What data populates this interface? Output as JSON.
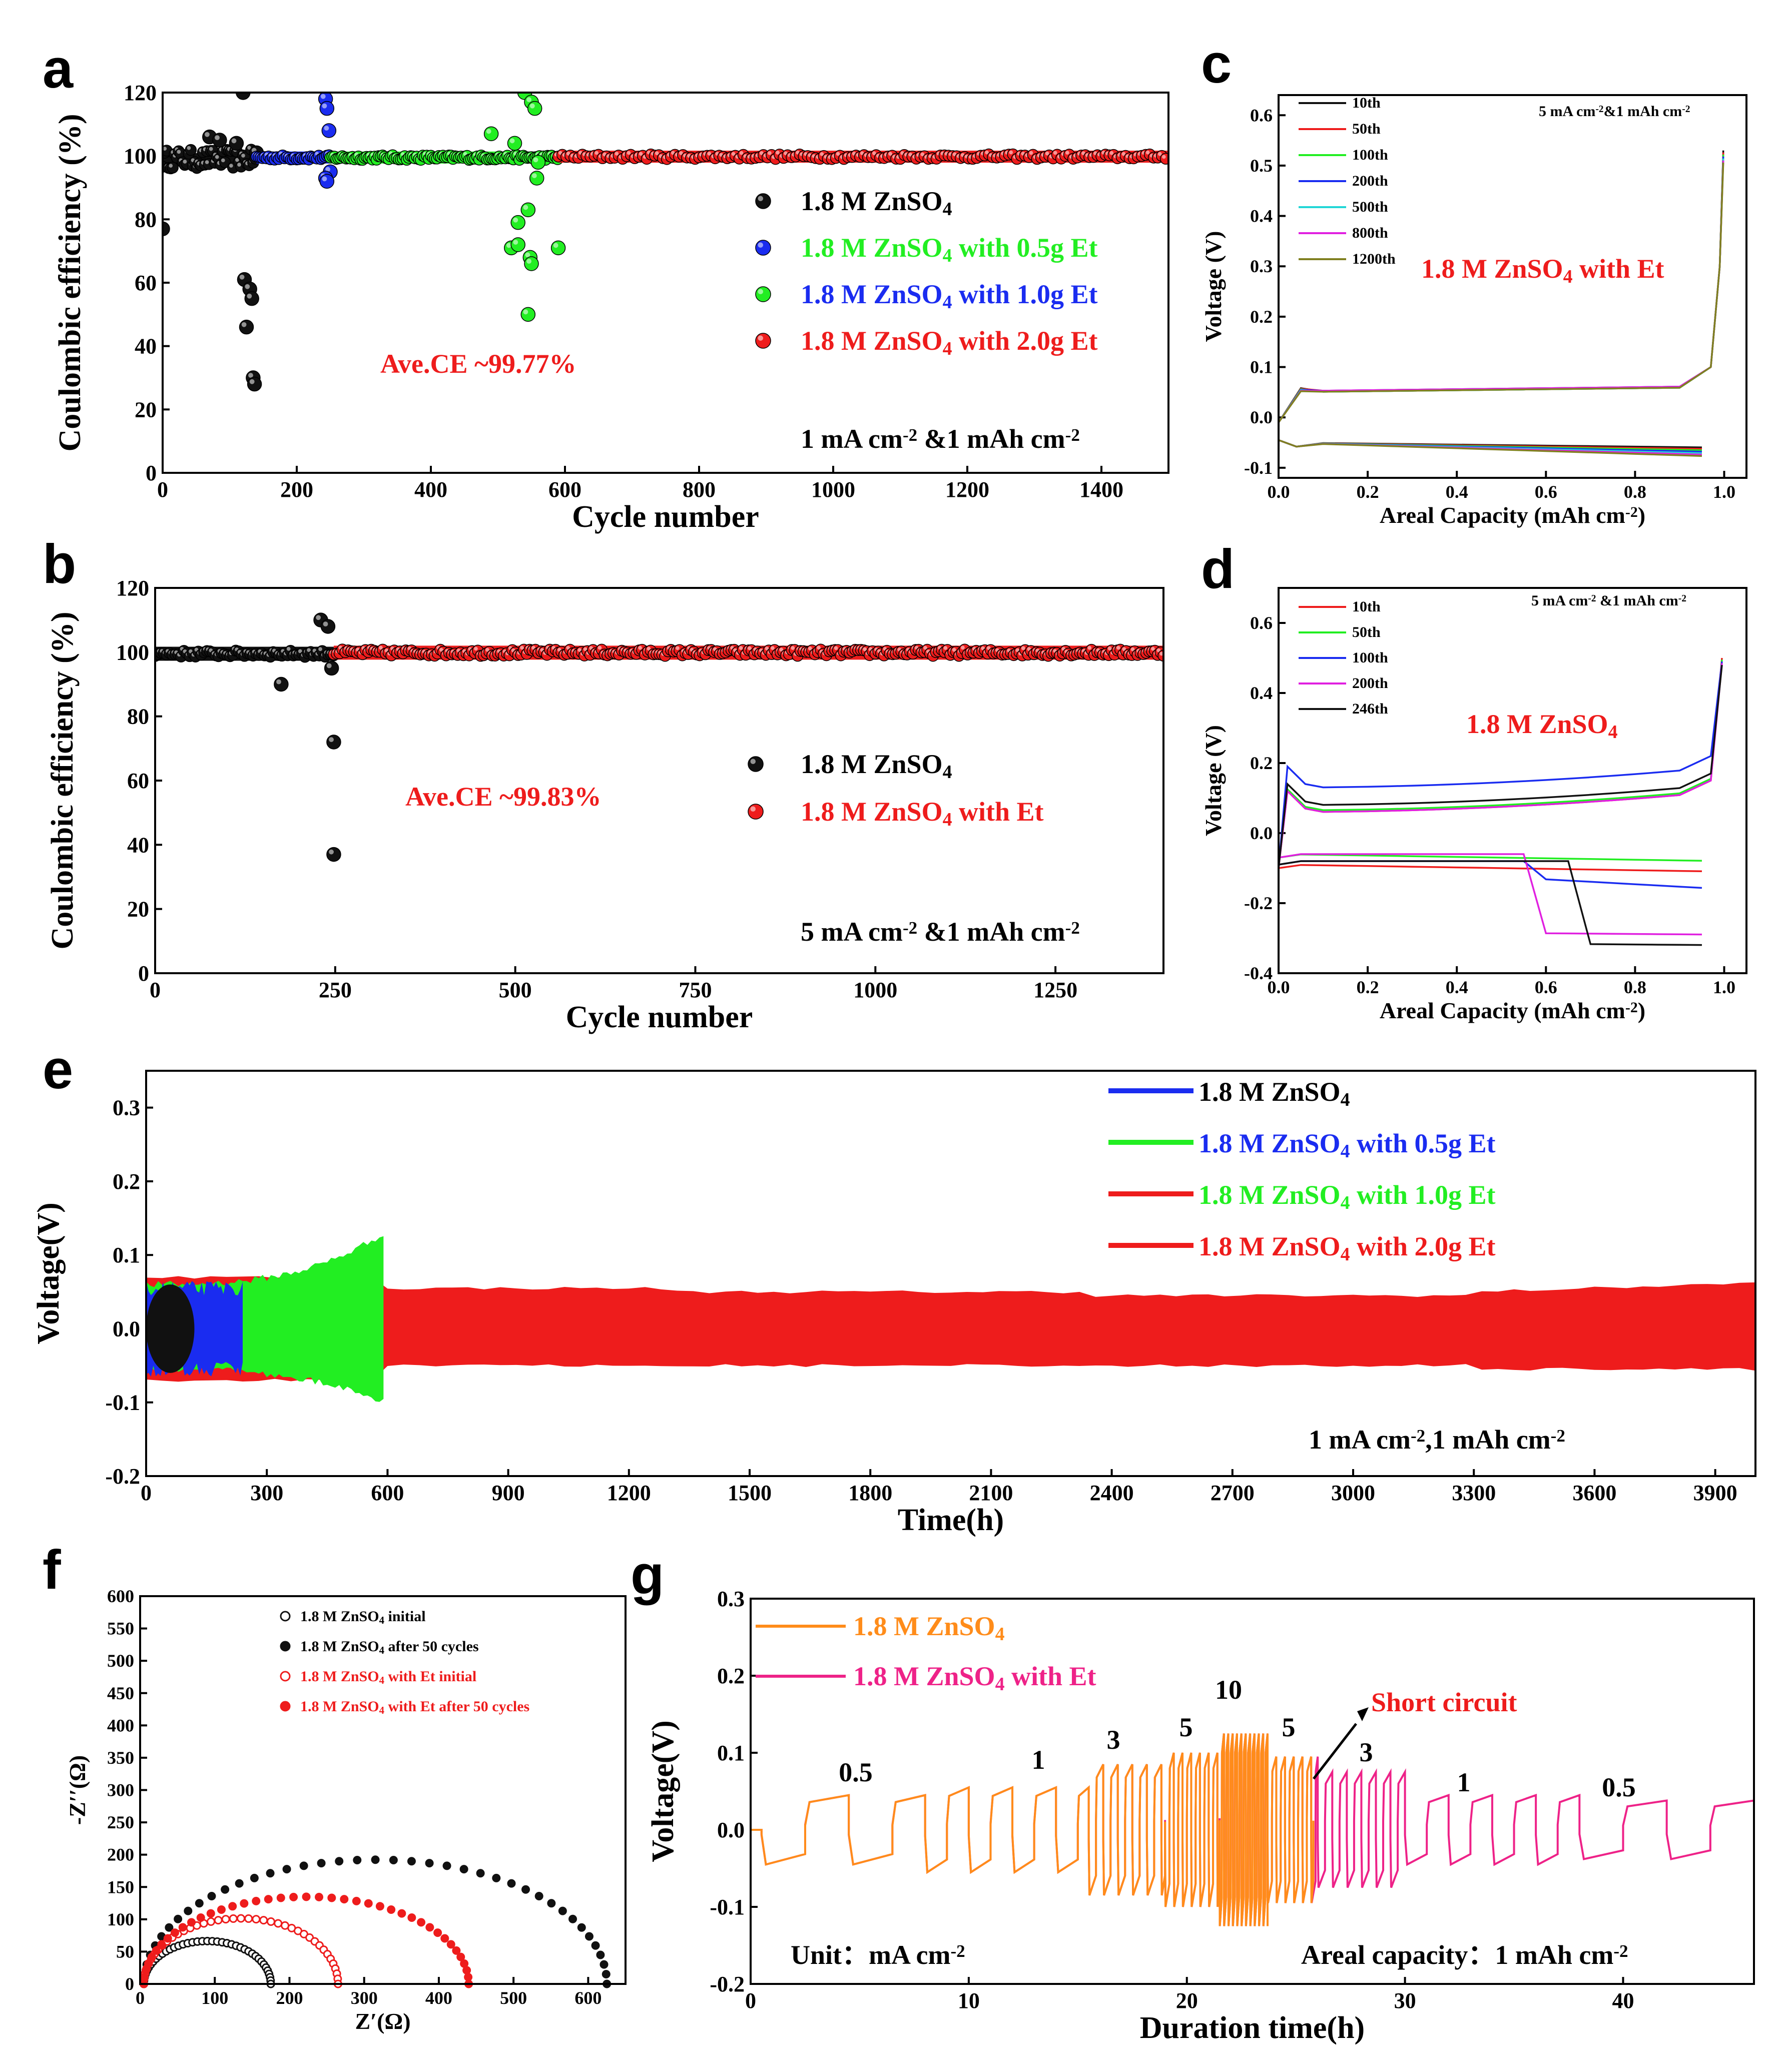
{
  "colors": {
    "black": "#111111",
    "red": "#ee1c1c",
    "green": "#22ee22",
    "blue": "#1a2cf0",
    "cyan": "#22d6d6",
    "magenta": "#e020e0",
    "olive": "#808020",
    "orange": "#ff8c1a",
    "pink": "#ee2288"
  },
  "chart_data": [
    {
      "panel": "a",
      "type": "scatter",
      "xlabel": "Cycle number",
      "ylabel": "Coulombic efficiency (%)",
      "xlim": [
        0,
        1500
      ],
      "ylim": [
        0,
        120
      ],
      "xticks": [
        "0",
        "200",
        "400",
        "600",
        "800",
        "1000",
        "1200",
        "1400"
      ],
      "yticks": [
        "0",
        "20",
        "40",
        "60",
        "80",
        "100",
        "120"
      ],
      "annotation": "Ave.CE ~99.77%",
      "condition": "1 mA cm⁻² &1 mAh cm⁻²",
      "series": [
        {
          "name": "1.8 M ZnSO₄",
          "color": "black",
          "x_range": [
            0,
            140
          ],
          "baseline": 99,
          "outliers": [
            [
              0,
              77
            ],
            [
              70,
              106
            ],
            [
              85,
              105
            ],
            [
              110,
              104
            ],
            [
              120,
              120
            ],
            [
              122,
              61
            ],
            [
              125,
              46
            ],
            [
              130,
              58
            ],
            [
              133,
              55
            ],
            [
              135,
              30
            ],
            [
              137,
              28
            ],
            [
              140,
              101
            ]
          ]
        },
        {
          "name": "1.8 M ZnSO₄ with 0.5g Et",
          "color": "blue",
          "x_range": [
            140,
            250
          ],
          "baseline": 99.5,
          "outliers": [
            [
              243,
              118
            ],
            [
              245,
              115
            ],
            [
              248,
              108
            ],
            [
              250,
              95
            ],
            [
              243,
              93
            ],
            [
              245,
              92
            ]
          ]
        },
        {
          "name": "1.8 M ZnSO₄ with 1.0g Et",
          "color": "green",
          "x_range": [
            250,
            590
          ],
          "baseline": 99.5,
          "outliers": [
            [
              490,
              107
            ],
            [
              525,
              104
            ],
            [
              540,
              120
            ],
            [
              550,
              117
            ],
            [
              555,
              115
            ],
            [
              530,
              79
            ],
            [
              520,
              71
            ],
            [
              530,
              72
            ],
            [
              545,
              83
            ],
            [
              548,
              68
            ],
            [
              550,
              66
            ],
            [
              545,
              50
            ],
            [
              560,
              98
            ],
            [
              558,
              93
            ],
            [
              590,
              71
            ]
          ]
        },
        {
          "name": "1.8 M ZnSO₄ with 2.0g Et",
          "color": "red",
          "x_range": [
            590,
            1500
          ],
          "baseline": 99.77,
          "outliers": []
        }
      ]
    },
    {
      "panel": "b",
      "type": "scatter",
      "xlabel": "Cycle number",
      "ylabel": "Coulombic efficiency (%)",
      "xlim": [
        0,
        1400
      ],
      "ylim": [
        0,
        120
      ],
      "xticks": [
        "0",
        "250",
        "500",
        "750",
        "1000",
        "1250"
      ],
      "yticks": [
        "0",
        "20",
        "40",
        "60",
        "80",
        "100",
        "120"
      ],
      "annotation": "Ave.CE ~99.83%",
      "condition": "5 mA cm⁻² &1 mAh cm⁻²",
      "series": [
        {
          "name": "1.8 M ZnSO₄",
          "color": "black",
          "x_range": [
            0,
            248
          ],
          "baseline": 99.5,
          "outliers": [
            [
              175,
              90
            ],
            [
              230,
              110
            ],
            [
              240,
              108
            ],
            [
              245,
              95
            ],
            [
              248,
              72
            ],
            [
              248,
              37
            ]
          ]
        },
        {
          "name": "1.8 M ZnSO₄ with Et",
          "color": "red",
          "x_range": [
            248,
            1400
          ],
          "baseline": 99.83,
          "outliers": []
        }
      ]
    },
    {
      "panel": "c",
      "type": "line",
      "xlabel": "Areal Capacity (mAh cm⁻²)",
      "ylabel": "Voltage (V)",
      "xlim": [
        0,
        1.05
      ],
      "ylim": [
        -0.12,
        0.64
      ],
      "xticks": [
        "0.0",
        "0.2",
        "0.4",
        "0.6",
        "0.8",
        "1.0"
      ],
      "yticks": [
        "-0.1",
        "0.0",
        "0.1",
        "0.2",
        "0.3",
        "0.4",
        "0.5",
        "0.6"
      ],
      "condition": "5 mA cm⁻²&1 mAh cm⁻²",
      "annotation": "1.8 M ZnSO₄ with Et",
      "series": [
        {
          "name": "10th",
          "color": "black"
        },
        {
          "name": "50th",
          "color": "red"
        },
        {
          "name": "100th",
          "color": "green"
        },
        {
          "name": "200th",
          "color": "blue"
        },
        {
          "name": "500th",
          "color": "cyan"
        },
        {
          "name": "800th",
          "color": "magenta"
        },
        {
          "name": "1200th",
          "color": "olive"
        }
      ],
      "plating_v": [
        -0.05,
        -0.08
      ],
      "stripping_v": [
        0.05,
        0.53
      ]
    },
    {
      "panel": "d",
      "type": "line",
      "xlabel": "Areal Capacity (mAh cm⁻²)",
      "ylabel": "Voltage (V)",
      "xlim": [
        0,
        1.05
      ],
      "ylim": [
        -0.4,
        0.7
      ],
      "xticks": [
        "0.0",
        "0.2",
        "0.4",
        "0.6",
        "0.8",
        "1.0"
      ],
      "yticks": [
        "-0.4",
        "-0.2",
        "0.0",
        "0.2",
        "0.4",
        "0.6"
      ],
      "condition": "5 mA cm⁻² &1 mAh cm⁻²",
      "annotation": "1.8 M ZnSO₄",
      "series": [
        {
          "name": "10th",
          "color": "red"
        },
        {
          "name": "50th",
          "color": "green"
        },
        {
          "name": "100th",
          "color": "blue"
        },
        {
          "name": "200th",
          "color": "magenta"
        },
        {
          "name": "246th",
          "color": "black"
        }
      ]
    },
    {
      "panel": "e",
      "type": "area",
      "xlabel": "Time(h)",
      "ylabel": "Voltage(V)",
      "xlim": [
        0,
        4000
      ],
      "ylim": [
        -0.2,
        0.35
      ],
      "xticks": [
        "0",
        "300",
        "600",
        "900",
        "1200",
        "1500",
        "1800",
        "2100",
        "2400",
        "2700",
        "3000",
        "3300",
        "3600",
        "3900"
      ],
      "yticks": [
        "-0.2",
        "-0.1",
        "0.0",
        "0.1",
        "0.2",
        "0.3"
      ],
      "condition": "1 mA cm⁻²,1 mAh cm⁻²",
      "series": [
        {
          "name": "1.8 M ZnSO₄",
          "color": "blue",
          "band_color": "black",
          "t_end": 120,
          "amp": 0.05
        },
        {
          "name": "1.8 M ZnSO₄ with 0.5g Et",
          "color": "green",
          "band_color": "blue",
          "t_end": 240,
          "amp": 0.06
        },
        {
          "name": "1.8 M ZnSO₄ with 1.0g Et",
          "color": "red",
          "band_color": "green",
          "t_end": 590,
          "amp": 0.13
        },
        {
          "name": "1.8 M ZnSO₄ with 2.0g Et",
          "color": "red",
          "band_color": "red",
          "t_end": 4000,
          "amp": 0.06
        }
      ]
    },
    {
      "panel": "f",
      "type": "scatter",
      "xlabel": "Z′(Ω)",
      "ylabel": "-Z′′(Ω)",
      "xlim": [
        0,
        650
      ],
      "ylim": [
        0,
        600
      ],
      "xticks": [
        "0",
        "100",
        "200",
        "300",
        "400",
        "500",
        "600"
      ],
      "yticks": [
        "0",
        "50",
        "100",
        "150",
        "200",
        "250",
        "300",
        "350",
        "400",
        "450",
        "500",
        "550",
        "600"
      ],
      "series": [
        {
          "name": "1.8 M ZnSO₄ initial",
          "color": "black",
          "hollow": true,
          "semicircle": [
            5,
            175
          ]
        },
        {
          "name": "1.8 M ZnSO₄ after 50 cycles",
          "color": "black",
          "hollow": false,
          "semicircle": [
            5,
            625
          ]
        },
        {
          "name": "1.8 M ZnSO₄ with Et initial",
          "color": "red",
          "hollow": true,
          "semicircle": [
            5,
            265
          ]
        },
        {
          "name": "1.8 M ZnSO₄ with Et after 50 cycles",
          "color": "red",
          "hollow": false,
          "semicircle": [
            5,
            440
          ]
        }
      ]
    },
    {
      "panel": "g",
      "type": "line",
      "xlabel": "Duration time(h)",
      "ylabel": "Voltage(V)",
      "xlim": [
        0,
        46
      ],
      "ylim": [
        -0.2,
        0.3
      ],
      "xticks": [
        "0",
        "10",
        "20",
        "30",
        "40"
      ],
      "yticks": [
        "-0.2",
        "-0.1",
        "0.0",
        "0.1",
        "0.2",
        "0.3"
      ],
      "unit_note": "Unit：mA cm⁻²",
      "capacity_note": "Areal capacity：1 mAh cm⁻²",
      "short_circuit_label": "Short circuit",
      "rate_labels": [
        "0.5",
        "1",
        "3",
        "5",
        "10",
        "5",
        "3",
        "1",
        "0.5"
      ],
      "series": [
        {
          "name": "1.8 M ZnSO₄",
          "color": "orange"
        },
        {
          "name": "1.8 M ZnSO₄ with Et",
          "color": "pink"
        }
      ],
      "segments": [
        {
          "rate": 0.5,
          "t": [
            0.5,
            8.0
          ],
          "amp": 0.045
        },
        {
          "rate": 1,
          "t": [
            8.0,
            15.5
          ],
          "amp": 0.055
        },
        {
          "rate": 3,
          "t": [
            15.5,
            19.0
          ],
          "amp": 0.085
        },
        {
          "rate": 5,
          "t": [
            19.0,
            21.5
          ],
          "amp": 0.1
        },
        {
          "rate": 10,
          "t": [
            21.5,
            23.7
          ],
          "amp": 0.125
        },
        {
          "rate": 5,
          "t": [
            23.7,
            26.0
          ],
          "amp": 0.095
        },
        {
          "rate": 3,
          "t": [
            26.0,
            30.0
          ],
          "amp": 0.075
        },
        {
          "rate": 1,
          "t": [
            30.0,
            38.0
          ],
          "amp": 0.045
        },
        {
          "rate": 0.5,
          "t": [
            38.0,
            46.0
          ],
          "amp": 0.038
        }
      ],
      "short_circuit_time": 25.8
    }
  ],
  "labels": {
    "a": {
      "panel": "a",
      "legend": [
        "1.8 M ZnSO₄",
        "1.8 M ZnSO₄ with 0.5g Et",
        "1.8 M ZnSO₄ with 1.0g Et",
        "1.8 M ZnSO₄ with 2.0g Et"
      ]
    },
    "b": {
      "panel": "b",
      "legend": [
        "1.8 M ZnSO₄",
        "1.8 M ZnSO₄ with Et"
      ]
    },
    "c": {
      "panel": "c"
    },
    "d": {
      "panel": "d"
    },
    "e": {
      "panel": "e",
      "legend": [
        "1.8 M ZnSO₄",
        "1.8 M ZnSO₄ with 0.5g Et",
        "1.8 M ZnSO₄ with 1.0g Et",
        "1.8 M ZnSO₄ with 2.0g Et"
      ]
    },
    "f": {
      "panel": "f"
    },
    "g": {
      "panel": "g"
    }
  }
}
